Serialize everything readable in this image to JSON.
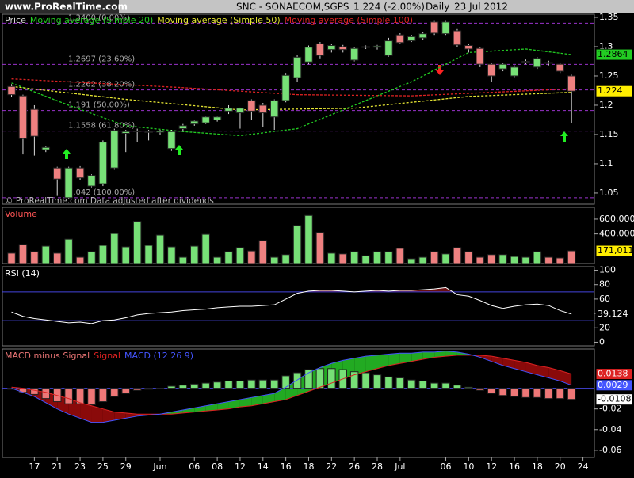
{
  "header": {
    "site": "www.ProRealTime.com",
    "title": "SNC - SONAECOM,SGPS",
    "quote": "1.224 (-2.00%)",
    "period": "Daily",
    "date": "23 Jul 2012"
  },
  "chart_data": [
    {
      "type": "candlestick",
      "title": "Price",
      "note": "© ProRealTime.com  Data adjusted after dividends",
      "up_color": "#77e077",
      "down_color": "#ee8080",
      "open": [
        1.232,
        1.216,
        1.193,
        1.124,
        1.093,
        1.042,
        1.093,
        1.062,
        1.066,
        1.093,
        1.152,
        1.155,
        1.155,
        1.154,
        1.126,
        1.16,
        1.168,
        1.17,
        1.175,
        1.19,
        1.187,
        1.208,
        1.2,
        1.18,
        1.208,
        1.247,
        1.274,
        1.305,
        1.295,
        1.3,
        1.277,
        1.299,
        1.299,
        1.285,
        1.32,
        1.31,
        1.315,
        1.342,
        1.322,
        1.327,
        1.302,
        1.297,
        1.27,
        1.262,
        1.25,
        1.274,
        1.265,
        1.273,
        1.27,
        1.25
      ],
      "high": [
        1.236,
        1.218,
        1.2,
        1.13,
        1.095,
        1.095,
        1.096,
        1.082,
        1.14,
        1.16,
        1.158,
        1.16,
        1.158,
        1.158,
        1.158,
        1.168,
        1.175,
        1.182,
        1.182,
        1.2,
        1.196,
        1.21,
        1.204,
        1.21,
        1.255,
        1.285,
        1.302,
        1.308,
        1.305,
        1.303,
        1.3,
        1.302,
        1.303,
        1.315,
        1.323,
        1.32,
        1.325,
        1.345,
        1.345,
        1.33,
        1.305,
        1.3,
        1.272,
        1.272,
        1.268,
        1.278,
        1.282,
        1.276,
        1.273,
        1.252
      ],
      "low": [
        1.214,
        1.116,
        1.114,
        1.12,
        1.045,
        1.04,
        1.072,
        1.06,
        1.062,
        1.09,
        1.12,
        1.137,
        1.14,
        1.15,
        1.122,
        1.155,
        1.165,
        1.168,
        1.172,
        1.185,
        1.16,
        1.175,
        1.163,
        1.158,
        1.205,
        1.24,
        1.27,
        1.28,
        1.29,
        1.29,
        1.275,
        1.296,
        1.295,
        1.283,
        1.305,
        1.308,
        1.312,
        1.32,
        1.32,
        1.3,
        1.29,
        1.265,
        1.24,
        1.258,
        1.248,
        1.27,
        1.262,
        1.268,
        1.255,
        1.17
      ],
      "close": [
        1.218,
        1.143,
        1.147,
        1.128,
        1.074,
        1.093,
        1.076,
        1.08,
        1.137,
        1.157,
        1.155,
        1.156,
        1.155,
        1.156,
        1.155,
        1.165,
        1.173,
        1.18,
        1.18,
        1.195,
        1.195,
        1.19,
        1.187,
        1.208,
        1.251,
        1.282,
        1.299,
        1.285,
        1.302,
        1.295,
        1.297,
        1.3,
        1.301,
        1.31,
        1.307,
        1.317,
        1.322,
        1.323,
        1.342,
        1.303,
        1.296,
        1.27,
        1.25,
        1.27,
        1.265,
        1.275,
        1.28,
        1.272,
        1.258,
        1.224
      ],
      "series": [
        {
          "name": "Moving average (Simple 20)",
          "color": "#22cc22",
          "x": [
            0,
            5,
            10,
            15,
            20,
            25,
            30,
            35,
            40,
            45,
            49
          ],
          "values": [
            1.238,
            1.2,
            1.165,
            1.155,
            1.148,
            1.16,
            1.2,
            1.24,
            1.29,
            1.296,
            1.2864
          ]
        },
        {
          "name": "Moving average (Simple 50)",
          "color": "#e6e633",
          "x": [
            0,
            10,
            20,
            30,
            40,
            49
          ],
          "values": [
            1.232,
            1.21,
            1.192,
            1.195,
            1.215,
            1.222
          ]
        },
        {
          "name": "Moving average (Simple 100)",
          "color": "#dd2222",
          "x": [
            0,
            15,
            25,
            35,
            49
          ],
          "values": [
            1.245,
            1.23,
            1.218,
            1.216,
            1.228
          ]
        }
      ],
      "fib_levels": [
        {
          "value": 1.34,
          "label": "1.3400 (0.00%)"
        },
        {
          "value": 1.2697,
          "label": "1.2697 (23.60%)"
        },
        {
          "value": 1.2262,
          "label": "1.2262 (38.20%)"
        },
        {
          "value": 1.191,
          "label": "1.191 (50.00%)"
        },
        {
          "value": 1.1558,
          "label": "1.1558 (61.80%)"
        },
        {
          "value": 1.042,
          "label": "1.042 (100.00%)"
        }
      ],
      "fib_color": "#9933cc",
      "ylim": [
        1.031,
        1.3554
      ],
      "yticks": [
        1.35,
        1.3,
        1.25,
        1.2,
        1.15,
        1.1,
        1.05
      ],
      "xlim": [
        -0.8,
        51
      ],
      "xticks": [
        {
          "value": 2,
          "label": "17"
        },
        {
          "value": 4,
          "label": "21"
        },
        {
          "value": 6,
          "label": "23"
        },
        {
          "value": 8,
          "label": "25"
        },
        {
          "value": 10,
          "label": "29"
        },
        {
          "value": 13,
          "label": "Jun"
        },
        {
          "value": 16,
          "label": "06"
        },
        {
          "value": 18,
          "label": "08"
        },
        {
          "value": 20,
          "label": "12"
        },
        {
          "value": 22,
          "label": "14"
        },
        {
          "value": 24,
          "label": "16"
        },
        {
          "value": 26,
          "label": "18"
        },
        {
          "value": 28,
          "label": "22"
        },
        {
          "value": 30,
          "label": "26"
        },
        {
          "value": 32,
          "label": "28"
        },
        {
          "value": 34,
          "label": "Jul"
        },
        {
          "value": 38,
          "label": "06"
        },
        {
          "value": 40,
          "label": "10"
        },
        {
          "value": 42,
          "label": "12"
        },
        {
          "value": 44,
          "label": "16"
        },
        {
          "value": 46,
          "label": "18"
        },
        {
          "value": 48,
          "label": "20"
        },
        {
          "value": 50,
          "label": "24"
        }
      ]
    },
    {
      "type": "bar",
      "title": "Volume",
      "title_color": "#ff5555",
      "values": [
        140000,
        257000,
        160000,
        235000,
        140000,
        330000,
        85000,
        160000,
        245000,
        405000,
        225000,
        570000,
        245000,
        385000,
        225000,
        85000,
        235000,
        395000,
        85000,
        160000,
        215000,
        170000,
        310000,
        85000,
        120000,
        515000,
        650000,
        420000,
        140000,
        130000,
        160000,
        105000,
        160000,
        160000,
        205000,
        65000,
        85000,
        160000,
        130000,
        215000,
        160000,
        85000,
        120000,
        120000,
        95000,
        85000,
        160000,
        85000,
        75000,
        171011
      ],
      "value_labels": [
        null,
        null,
        null,
        null,
        null,
        null,
        null,
        null,
        null,
        null,
        null,
        null,
        null,
        null,
        null,
        null,
        null,
        null,
        null,
        null,
        null,
        null,
        null,
        null,
        null,
        null,
        null,
        null,
        null,
        null,
        null,
        null,
        null,
        null,
        null,
        null,
        null,
        null,
        null,
        null,
        null,
        null,
        null,
        null,
        null,
        null,
        null,
        null,
        null,
        "171,011"
      ],
      "ylim": [
        0,
        760000
      ],
      "yticks": [
        {
          "value": 600000,
          "label": "600,000"
        },
        {
          "value": 400000,
          "label": "400,000"
        }
      ]
    },
    {
      "type": "line",
      "title": "RSI (14)",
      "color": "#ffffff",
      "band_color": "#4444dd",
      "fill_color": "#6a1010",
      "values": [
        42,
        36,
        33,
        31,
        29,
        27,
        28,
        26,
        30,
        31,
        34,
        38,
        40,
        41,
        42,
        44,
        45,
        46,
        48,
        49,
        50,
        50,
        51,
        52,
        60,
        68,
        71,
        72,
        72,
        71,
        70,
        71,
        72,
        71,
        72,
        72,
        73,
        74,
        76,
        66,
        64,
        58,
        51,
        47,
        50,
        52,
        53,
        51,
        44,
        39.124
      ],
      "bands": [
        30,
        70
      ],
      "ylim": [
        -5,
        105
      ],
      "yticks": [
        100,
        80,
        60,
        40,
        20,
        0
      ]
    },
    {
      "type": "macd",
      "up_fill": "#22aa22",
      "down_fill": "#8a0a0a",
      "zero_color": "#4444dd",
      "series": [
        {
          "name": "MACD minus Signal",
          "color": "#ee7777",
          "values": [
            -0.001,
            -0.004,
            -0.006,
            -0.01,
            -0.013,
            -0.015,
            -0.015,
            -0.016,
            -0.013,
            -0.008,
            -0.005,
            -0.002,
            -0.001,
            0,
            0.002,
            0.003,
            0.004,
            0.005,
            0.006,
            0.007,
            0.007,
            0.008,
            0.008,
            0.008,
            0.012,
            0.015,
            0.018,
            0.019,
            0.019,
            0.018,
            0.016,
            0.015,
            0.013,
            0.011,
            0.01,
            0.008,
            0.007,
            0.005,
            0.005,
            0.003,
            0.001,
            -0.002,
            -0.005,
            -0.007,
            -0.008,
            -0.009,
            -0.009,
            -0.01,
            -0.01,
            -0.0108
          ]
        },
        {
          "name": "Signal",
          "color": "#dd2222",
          "values": [
            0.001,
            0,
            -0.002,
            -0.004,
            -0.007,
            -0.01,
            -0.014,
            -0.017,
            -0.02,
            -0.023,
            -0.024,
            -0.025,
            -0.025,
            -0.025,
            -0.025,
            -0.024,
            -0.023,
            -0.022,
            -0.021,
            -0.02,
            -0.018,
            -0.017,
            -0.015,
            -0.013,
            -0.011,
            -0.007,
            -0.003,
            0.001,
            0.005,
            0.009,
            0.013,
            0.016,
            0.019,
            0.022,
            0.024,
            0.026,
            0.028,
            0.03,
            0.031,
            0.032,
            0.032,
            0.032,
            0.031,
            0.029,
            0.027,
            0.025,
            0.022,
            0.02,
            0.017,
            0.0138
          ]
        },
        {
          "name": "MACD (12 26 9)",
          "color": "#4455ff",
          "values": [
            0,
            -0.004,
            -0.008,
            -0.014,
            -0.02,
            -0.025,
            -0.029,
            -0.033,
            -0.033,
            -0.031,
            -0.029,
            -0.027,
            -0.026,
            -0.025,
            -0.023,
            -0.021,
            -0.019,
            -0.017,
            -0.015,
            -0.013,
            -0.011,
            -0.009,
            -0.007,
            -0.005,
            0.001,
            0.008,
            0.015,
            0.02,
            0.024,
            0.027,
            0.029,
            0.031,
            0.032,
            0.033,
            0.034,
            0.034,
            0.035,
            0.035,
            0.036,
            0.035,
            0.033,
            0.03,
            0.026,
            0.022,
            0.019,
            0.016,
            0.013,
            0.01,
            0.007,
            0.0029
          ]
        }
      ],
      "ylim": [
        -0.067,
        0.038
      ],
      "yticks": [
        -0.02,
        -0.04,
        -0.06
      ]
    }
  ]
}
